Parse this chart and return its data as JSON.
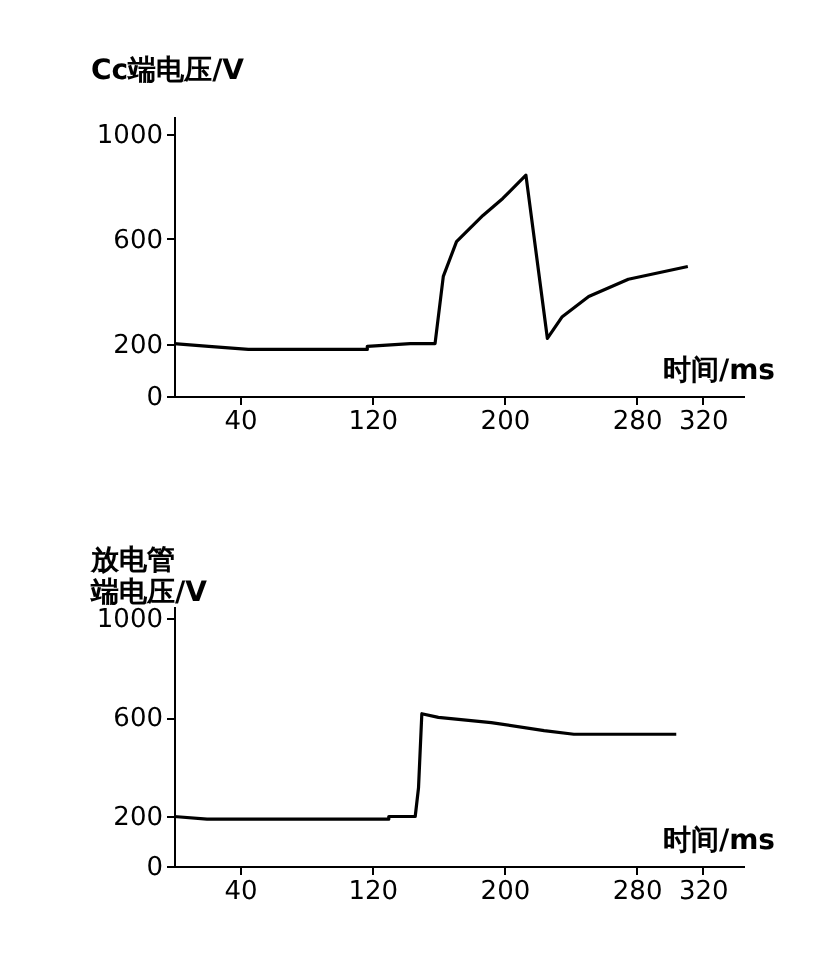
{
  "chart_data": [
    {
      "type": "line",
      "ylabel": "Cc端电压/V",
      "xlabel": "时间/ms",
      "xlim": [
        0,
        345
      ],
      "ylim": [
        0,
        1070
      ],
      "xticks": [
        40,
        120,
        200,
        280,
        320
      ],
      "yticks": [
        0,
        200,
        600,
        1000
      ],
      "series": [
        {
          "color": "#000000",
          "x": [
            0,
            21,
            45,
            117,
            117,
            143,
            158,
            163,
            171,
            187,
            199,
            213,
            226,
            235,
            251,
            275,
            311
          ],
          "values": [
            200,
            190,
            178,
            178,
            190,
            200,
            200,
            457,
            590,
            690,
            755,
            844,
            220,
            303,
            380,
            446,
            495
          ]
        }
      ]
    },
    {
      "type": "line",
      "ylabel": "放电管端电压/V",
      "xlabel": "时间/ms",
      "xlim": [
        0,
        345
      ],
      "ylim": [
        0,
        1050
      ],
      "xticks": [
        40,
        120,
        200,
        280,
        320
      ],
      "yticks": [
        0,
        200,
        600,
        1000
      ],
      "series": [
        {
          "color": "#000000",
          "x": [
            0,
            20,
            130,
            130,
            146,
            148,
            150,
            160,
            192,
            224,
            242,
            304
          ],
          "values": [
            200,
            189,
            189,
            200,
            200,
            316,
            615,
            600,
            579,
            547,
            532,
            532
          ]
        }
      ]
    }
  ]
}
